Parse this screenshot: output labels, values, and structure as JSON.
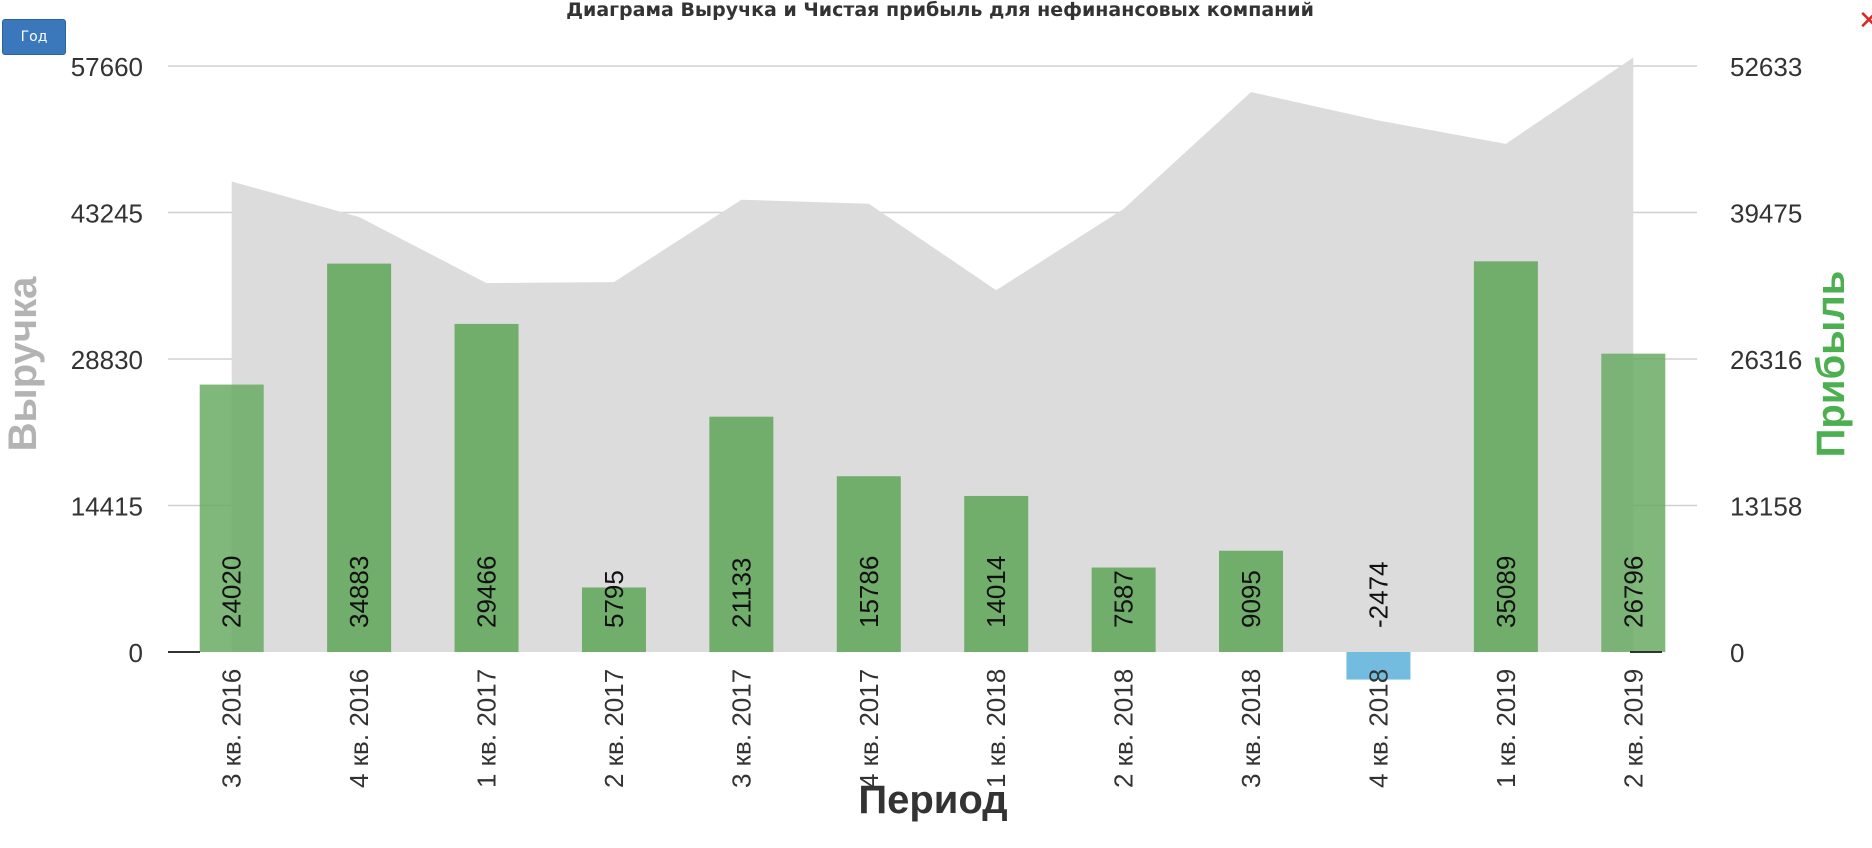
{
  "toolbar": {
    "period_label": "Год"
  },
  "window": {
    "close_icon": "close-icon",
    "close_symbol": "✕"
  },
  "chart_data": {
    "type": "bar",
    "title": "Диаграма Выручка и Чистая прибыль для нефинансовых компаний",
    "xlabel": "Период",
    "categories": [
      "3 кв. 2016",
      "4 кв. 2016",
      "1 кв. 2017",
      "2 кв. 2017",
      "3 кв. 2017",
      "4 кв. 2017",
      "1 кв. 2018",
      "2 кв. 2018",
      "3 кв. 2018",
      "4 кв. 2018",
      "1 кв. 2019",
      "2 кв. 2019"
    ],
    "left_axis": {
      "label": "Выручка",
      "ticks": [
        0,
        14415,
        28830,
        43245,
        57660
      ],
      "ylim": [
        0,
        57660
      ]
    },
    "right_axis": {
      "label": "Прибыль",
      "ticks": [
        0,
        13158,
        26316,
        39475,
        52633
      ],
      "ylim": [
        0,
        52633
      ]
    },
    "grid": true,
    "series": [
      {
        "name": "Выручка",
        "type": "area",
        "axis": "left",
        "color": "#dcdcdc",
        "values": [
          46300,
          42800,
          36300,
          36400,
          44500,
          44100,
          35600,
          43600,
          55100,
          52300,
          50000,
          58500
        ]
      },
      {
        "name": "Прибыль",
        "type": "bar",
        "axis": "right",
        "color": "#6aaa64",
        "negative_color": "#6bb8de",
        "values": [
          24020,
          34883,
          29466,
          5795,
          21133,
          15786,
          14014,
          7587,
          9095,
          -2474,
          35089,
          26796
        ]
      }
    ]
  }
}
